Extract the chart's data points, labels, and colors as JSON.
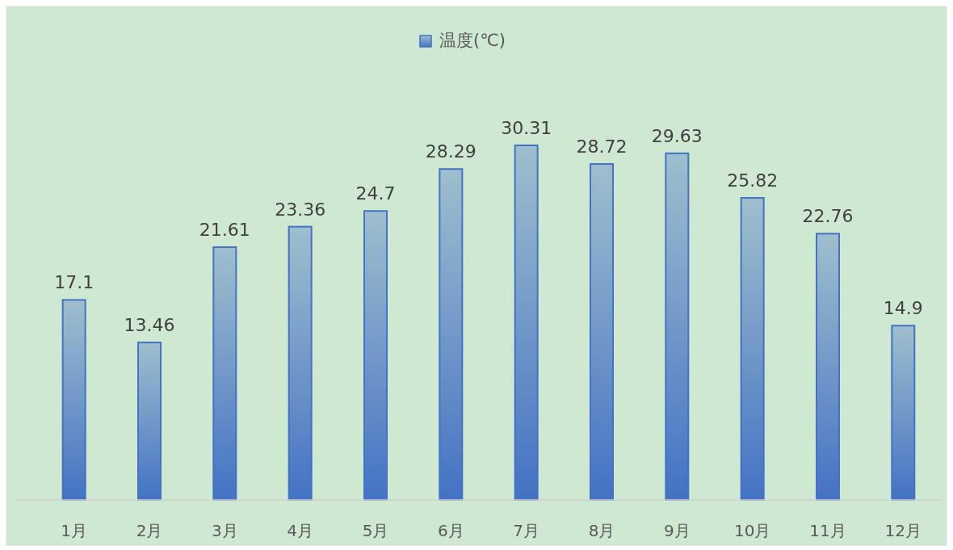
{
  "chart_data": {
    "type": "bar",
    "categories": [
      "1月",
      "2月",
      "3月",
      "4月",
      "5月",
      "6月",
      "7月",
      "8月",
      "9月",
      "10月",
      "11月",
      "12月"
    ],
    "series": [
      {
        "name": "温度(℃)",
        "color": "#4472c4",
        "values": [
          17.1,
          13.46,
          21.61,
          23.36,
          24.7,
          28.29,
          30.31,
          28.72,
          29.63,
          25.82,
          22.76,
          14.9
        ]
      }
    ],
    "data_labels": true,
    "legend": "top"
  }
}
